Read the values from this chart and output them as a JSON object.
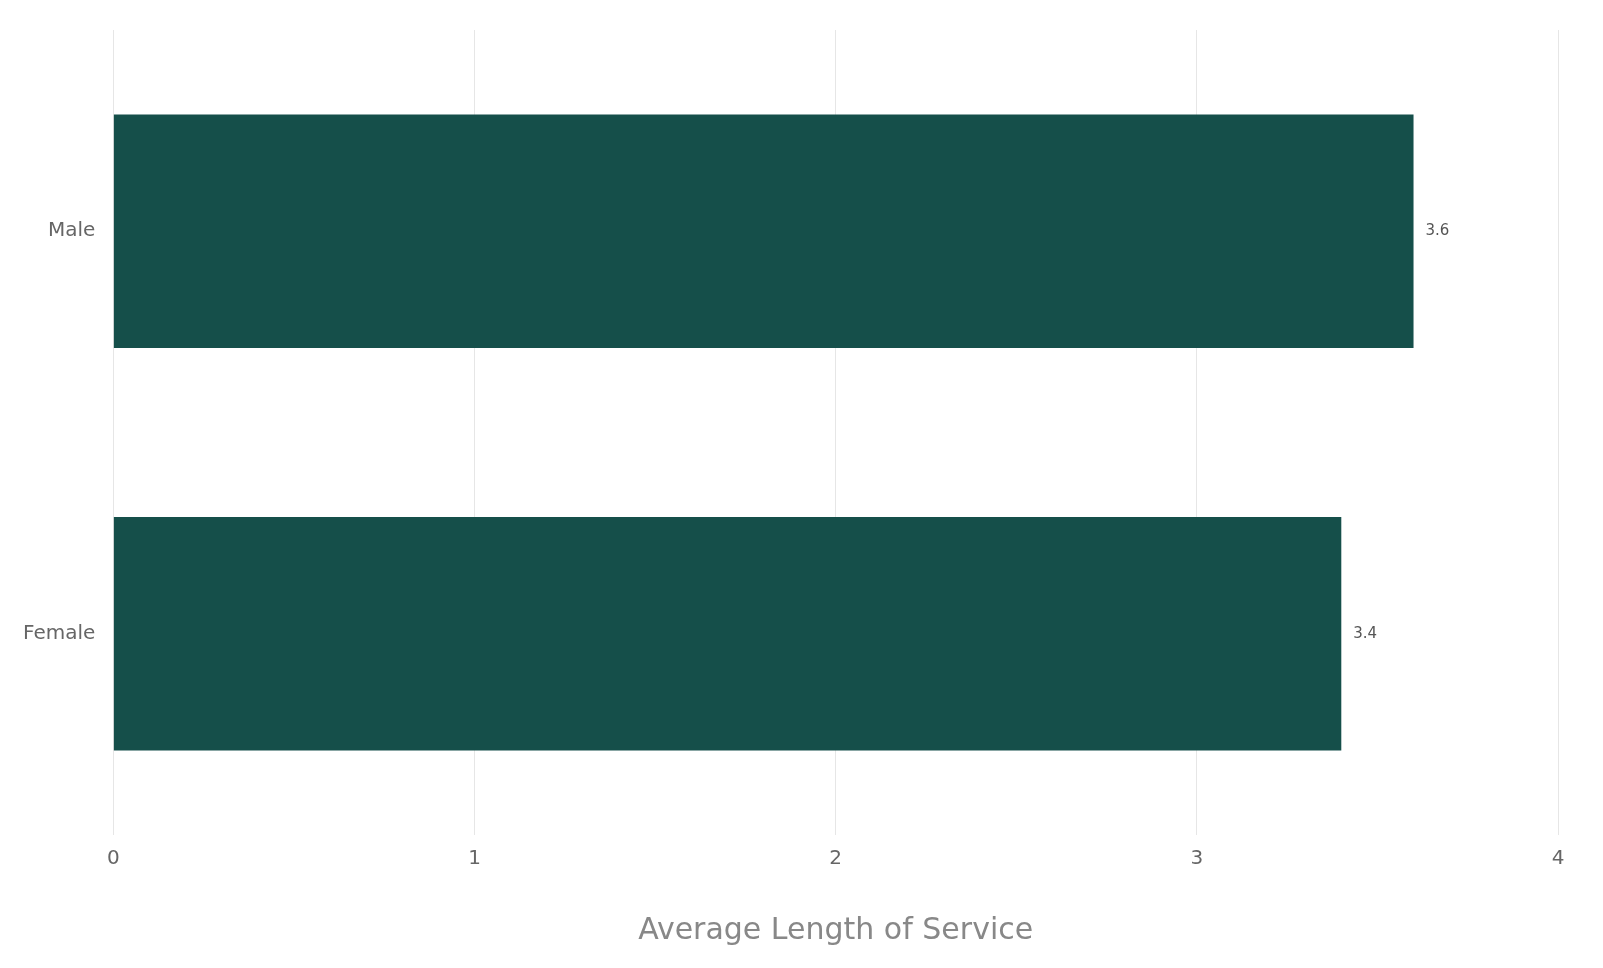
{
  "chart_data": {
    "type": "bar",
    "orientation": "horizontal",
    "xlabel": "Average Length of Service",
    "categories": [
      "Male",
      "Female"
    ],
    "values": [
      3.6,
      3.4
    ],
    "color": "#154f4a",
    "xlim": [
      0,
      4
    ],
    "xticks": [
      0,
      1,
      2,
      3,
      4
    ],
    "grid": "x",
    "data_labels": true
  }
}
